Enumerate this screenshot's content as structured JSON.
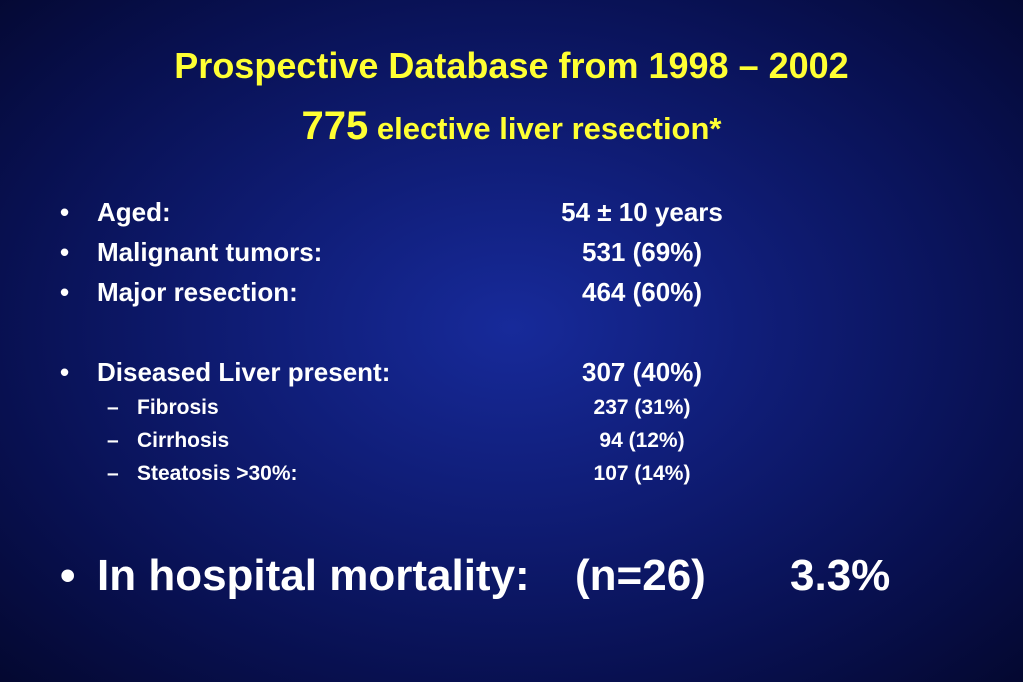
{
  "title": {
    "line1": "Prospective Database from 1998 – 2002",
    "line2_number": "775",
    "line2_text": " elective liver resection*"
  },
  "bullet_glyph": "•",
  "dash_glyph": "–",
  "items": [
    {
      "label": "Aged:",
      "value": "54 ± 10 years"
    },
    {
      "label": "Malignant tumors:",
      "value": "531 (69%)"
    },
    {
      "label": "Major resection:",
      "value": "464 (60%)"
    },
    {
      "label": "Diseased Liver present:",
      "value": "307 (40%)"
    }
  ],
  "subitems": [
    {
      "label": "Fibrosis",
      "value": "237 (31%)"
    },
    {
      "label": "Cirrhosis",
      "value": "94 (12%)"
    },
    {
      "label": "Steatosis >30%:",
      "value": "107 (14%)"
    }
  ],
  "mortality": {
    "label": "In hospital mortality:",
    "count": "(n=26)",
    "rate": "3.3%"
  }
}
